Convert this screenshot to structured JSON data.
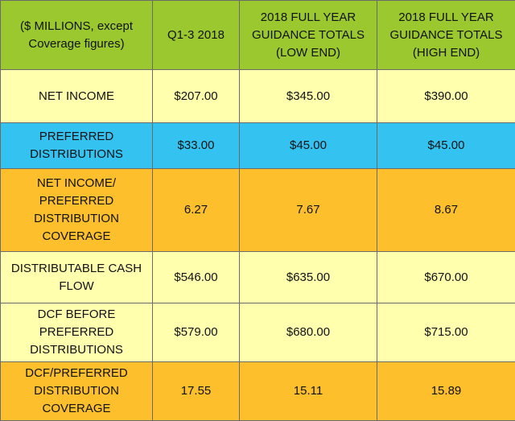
{
  "colors": {
    "header_bg": "#9ac82e",
    "light_yellow": "#ffffae",
    "cyan": "#34c3f1",
    "orange": "#fdc02c",
    "border": "#6b6b6b"
  },
  "header": {
    "label": "($ MILLIONS, except Coverage figures)",
    "columns": [
      "Q1-3 2018",
      "2018 FULL YEAR GUIDANCE  TOTALS (LOW END)",
      "2018 FULL YEAR GUIDANCE  TOTALS (HIGH END)"
    ]
  },
  "rows": [
    {
      "label": "NET INCOME",
      "values": [
        "$207.00",
        "$345.00",
        "$390.00"
      ],
      "color": "#ffffae",
      "bold": false
    },
    {
      "label": "PREFERRED DISTRIBUTIONS",
      "values": [
        "$33.00",
        "$45.00",
        "$45.00"
      ],
      "color": "#34c3f1",
      "bold": false
    },
    {
      "label": "NET INCOME/ PREFERRED DISTRIBUTION COVERAGE",
      "values": [
        "6.27",
        "7.67",
        "8.67"
      ],
      "color": "#fdc02c",
      "bold": true
    },
    {
      "label": "DISTRIBUTABLE CASH FLOW",
      "values": [
        "$546.00",
        "$635.00",
        "$670.00"
      ],
      "color": "#ffffae",
      "bold": false
    },
    {
      "label": "DCF BEFORE PREFERRED DISTRIBUTIONS",
      "values": [
        "$579.00",
        "$680.00",
        "$715.00"
      ],
      "color": "#ffffae",
      "bold": false
    },
    {
      "label": "DCF/PREFERRED DISTRIBUTION COVERAGE",
      "values": [
        "17.55",
        "15.11",
        "15.89"
      ],
      "color": "#fdc02c",
      "bold": true
    }
  ]
}
